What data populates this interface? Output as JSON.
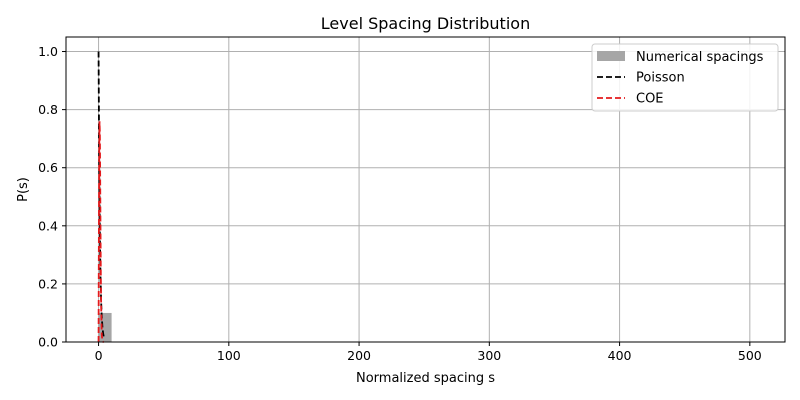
{
  "chart_data": {
    "type": "bar",
    "title": "Level Spacing Distribution",
    "xlabel": "Normalized spacing s",
    "ylabel": "P(s)",
    "xlim": [
      -25,
      527
    ],
    "ylim": [
      0,
      1.05
    ],
    "xticks": [
      0,
      100,
      200,
      300,
      400,
      500
    ],
    "yticks": [
      0.0,
      0.2,
      0.4,
      0.6,
      0.8,
      1.0
    ],
    "grid": true,
    "legend_placement": "top-right",
    "histogram": {
      "name": "Numerical spacings",
      "color": "#a6a6a6",
      "bins": [
        {
          "x0": 0,
          "x1": 10,
          "value": 0.1
        }
      ]
    },
    "series": [
      {
        "name": "Poisson",
        "color": "#000000",
        "style": "dashed",
        "x": [
          0,
          0.5,
          1,
          1.5,
          2,
          2.5,
          3,
          3.5,
          4
        ],
        "y": [
          1.0,
          0.607,
          0.368,
          0.223,
          0.135,
          0.082,
          0.05,
          0.03,
          0.018
        ]
      },
      {
        "name": "COE",
        "color": "#e41a1c",
        "style": "dashed",
        "x": [
          0,
          0.25,
          0.5,
          0.75,
          1,
          1.25,
          1.5,
          1.75,
          2,
          2.5,
          3,
          3.5,
          4
        ],
        "y": [
          0,
          0.37,
          0.65,
          0.76,
          0.72,
          0.56,
          0.38,
          0.23,
          0.12,
          0.023,
          0.003,
          0.0002,
          0
        ]
      }
    ]
  }
}
